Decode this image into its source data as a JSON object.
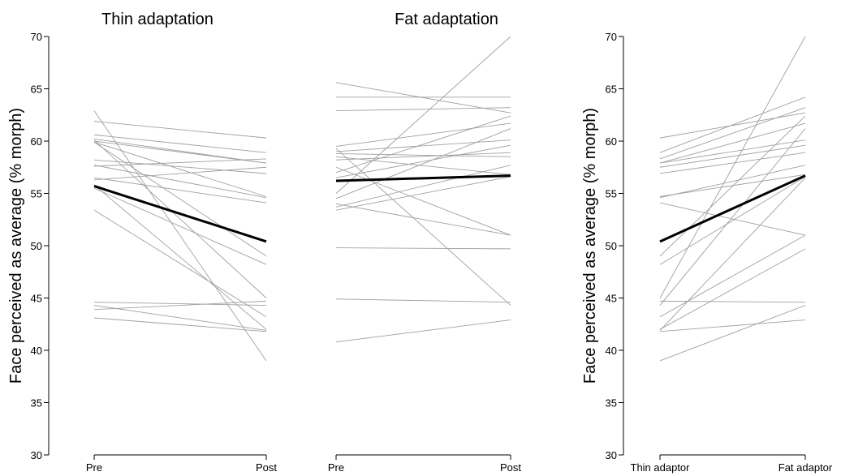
{
  "chart_data": [
    {
      "type": "line",
      "title": "Thin adaptation",
      "ylabel": "Face perceived as average (% morph)",
      "categories": [
        "Pre",
        "Post"
      ],
      "ylim": [
        30,
        70
      ],
      "yticks": [
        30,
        35,
        40,
        45,
        50,
        55,
        60,
        65,
        70
      ],
      "subjects": [
        [
          62.9,
          39.0
        ],
        [
          61.9,
          60.3
        ],
        [
          60.6,
          58.9
        ],
        [
          60.2,
          57.9
        ],
        [
          60.0,
          57.9
        ],
        [
          59.9,
          54.7
        ],
        [
          58.2,
          56.9
        ],
        [
          57.7,
          54.6
        ],
        [
          57.6,
          58.3
        ],
        [
          56.5,
          54.1
        ],
        [
          55.8,
          42.0
        ],
        [
          55.5,
          48.2
        ],
        [
          53.4,
          43.2
        ],
        [
          44.6,
          44.3
        ],
        [
          44.3,
          41.9
        ],
        [
          43.9,
          44.7
        ],
        [
          43.1,
          41.8
        ],
        [
          59.9,
          49.0
        ],
        [
          60.1,
          45.0
        ],
        [
          56.3,
          57.5
        ]
      ],
      "mean": [
        55.7,
        50.4
      ]
    },
    {
      "type": "line",
      "title": "Fat adaptation",
      "categories": [
        "Pre",
        "Post"
      ],
      "ylim": [
        30,
        70
      ],
      "subjects": [
        [
          65.6,
          62.7
        ],
        [
          64.2,
          64.2
        ],
        [
          62.9,
          63.2
        ],
        [
          59.5,
          61.7
        ],
        [
          59.3,
          44.3
        ],
        [
          59.0,
          60.1
        ],
        [
          58.5,
          56.8
        ],
        [
          58.2,
          58.9
        ],
        [
          57.5,
          51.0
        ],
        [
          57.0,
          62.4
        ],
        [
          55.0,
          70.0
        ],
        [
          54.5,
          61.2
        ],
        [
          54.0,
          51.0
        ],
        [
          53.7,
          57.7
        ],
        [
          53.4,
          56.6
        ],
        [
          49.8,
          49.7
        ],
        [
          44.9,
          44.6
        ],
        [
          40.8,
          42.9
        ],
        [
          56.5,
          59.6
        ],
        [
          58.8,
          58.5
        ]
      ],
      "mean": [
        56.2,
        56.7
      ]
    },
    {
      "type": "line",
      "ylabel": "Face perceived as average (% morph)",
      "categories": [
        "Thin adaptor",
        "Fat adaptor"
      ],
      "ylim": [
        30,
        70
      ],
      "yticks": [
        30,
        35,
        40,
        45,
        50,
        55,
        60,
        65,
        70
      ],
      "subjects": [
        [
          60.3,
          62.7
        ],
        [
          58.9,
          64.2
        ],
        [
          58.3,
          63.2
        ],
        [
          57.9,
          61.7
        ],
        [
          57.9,
          60.1
        ],
        [
          56.9,
          58.9
        ],
        [
          54.7,
          56.8
        ],
        [
          54.6,
          57.7
        ],
        [
          54.1,
          51.0
        ],
        [
          49.0,
          62.4
        ],
        [
          48.2,
          56.6
        ],
        [
          45.0,
          70.0
        ],
        [
          44.7,
          44.6
        ],
        [
          44.3,
          61.2
        ],
        [
          43.2,
          51.0
        ],
        [
          42.0,
          49.7
        ],
        [
          41.9,
          56.5
        ],
        [
          41.8,
          42.9
        ],
        [
          39.0,
          44.3
        ],
        [
          57.5,
          59.6
        ]
      ],
      "mean": [
        50.4,
        56.7
      ]
    }
  ]
}
